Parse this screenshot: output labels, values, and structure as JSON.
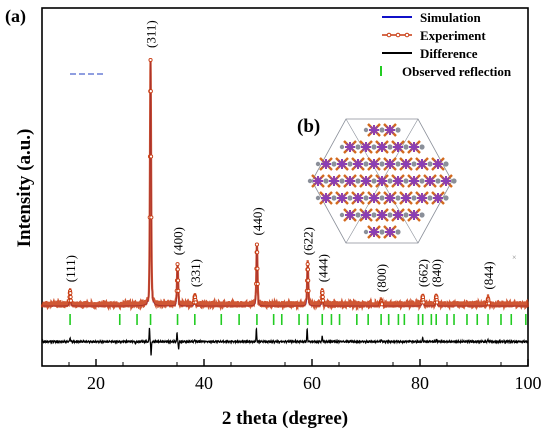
{
  "chart_data": {
    "type": "line",
    "panel_labels": [
      "(a)",
      "(b)"
    ],
    "xlabel": "2 theta (degree)",
    "ylabel": "Intensity (a.u.)",
    "xlim": [
      10,
      100
    ],
    "x_ticks": [
      20,
      40,
      60,
      80,
      100
    ],
    "legend": {
      "placement": "top-right",
      "entries": [
        {
          "name": "Simulation",
          "color": "#1010c8",
          "style": "line"
        },
        {
          "name": "Experiment",
          "color": "#c83a10",
          "style": "line-with-circles"
        },
        {
          "name": "Difference",
          "color": "#000000",
          "style": "line"
        },
        {
          "name": "Observed reflection",
          "color": "#22cc22",
          "style": "tick"
        }
      ]
    },
    "peaks": [
      {
        "hkl": "(111)",
        "x": 15.2,
        "intensity": 0.06
      },
      {
        "hkl": "(311)",
        "x": 30.1,
        "intensity": 1.0
      },
      {
        "hkl": "(400)",
        "x": 35.1,
        "intensity": 0.17
      },
      {
        "hkl": "(331)",
        "x": 38.3,
        "intensity": 0.04
      },
      {
        "hkl": "(440)",
        "x": 49.8,
        "intensity": 0.25
      },
      {
        "hkl": "(622)",
        "x": 59.2,
        "intensity": 0.17
      },
      {
        "hkl": "(444)",
        "x": 61.9,
        "intensity": 0.06
      },
      {
        "hkl": "(800)",
        "x": 72.8,
        "intensity": 0.02
      },
      {
        "hkl": "(662)",
        "x": 80.5,
        "intensity": 0.04
      },
      {
        "hkl": "(840)",
        "x": 83.0,
        "intensity": 0.04
      },
      {
        "hkl": "(844)",
        "x": 92.6,
        "intensity": 0.03
      }
    ],
    "reflections": [
      15.2,
      24.4,
      27.6,
      30.1,
      35.1,
      38.3,
      43.2,
      46.5,
      49.8,
      52.9,
      54.4,
      57.6,
      59.2,
      61.9,
      63.6,
      65.1,
      68.3,
      70.4,
      72.8,
      74.2,
      76.0,
      77.1,
      79.7,
      80.5,
      82.1,
      83.0,
      85.0,
      86.3,
      88.7,
      90.6,
      92.6,
      95.0,
      96.9,
      99.6
    ],
    "difference_peaks": [
      {
        "x": 15.2,
        "value": 0.3
      },
      {
        "x": 27.3,
        "value": -0.15
      },
      {
        "x": 29.9,
        "value": 1.0
      },
      {
        "x": 30.2,
        "value": -1.0
      },
      {
        "x": 35.0,
        "value": 0.6
      },
      {
        "x": 35.3,
        "value": -0.5
      },
      {
        "x": 38.3,
        "value": 0.15
      },
      {
        "x": 49.7,
        "value": 0.9
      },
      {
        "x": 59.1,
        "value": 0.9
      },
      {
        "x": 61.9,
        "value": 0.4
      },
      {
        "x": 72.8,
        "value": 0.1
      },
      {
        "x": 80.5,
        "value": 0.25
      },
      {
        "x": 83.0,
        "value": 0.15
      },
      {
        "x": 92.6,
        "value": 0.15
      }
    ],
    "colors": {
      "simulation": "#1010c8",
      "experiment": "#c83a10",
      "difference": "#000000",
      "reflection": "#22cc22",
      "inset_purple": "#8a3fb5",
      "inset_orange": "#d2691e",
      "inset_gray": "#8a8f99"
    }
  }
}
